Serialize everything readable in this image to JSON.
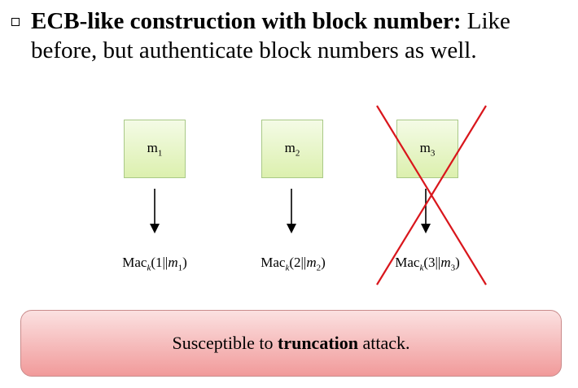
{
  "heading": {
    "bold": "ECB-like construction with block number:",
    "rest": " Like before, but authenticate block numbers as well."
  },
  "blocks": [
    {
      "label": "m",
      "sub": "1",
      "mac_prefix": "Mac",
      "mac_key": "k",
      "mac_open": "(1||",
      "mac_var": "m",
      "mac_var_sub": "1",
      "mac_close": ")"
    },
    {
      "label": "m",
      "sub": "2",
      "mac_prefix": "Mac",
      "mac_key": "k",
      "mac_open": "(2||",
      "mac_var": "m",
      "mac_var_sub": "2",
      "mac_close": ")"
    },
    {
      "label": "m",
      "sub": "3",
      "mac_prefix": "Mac",
      "mac_key": "k",
      "mac_open": "(3||",
      "mac_var": "m",
      "mac_var_sub": "3",
      "mac_close": ")"
    }
  ],
  "banner": {
    "pre": "Susceptible to ",
    "bold": "truncation",
    "post": " attack."
  },
  "colors": {
    "block_fill": "#dcf0ae",
    "cross_line": "#d9161c",
    "banner_fill": "#f19a9a"
  }
}
